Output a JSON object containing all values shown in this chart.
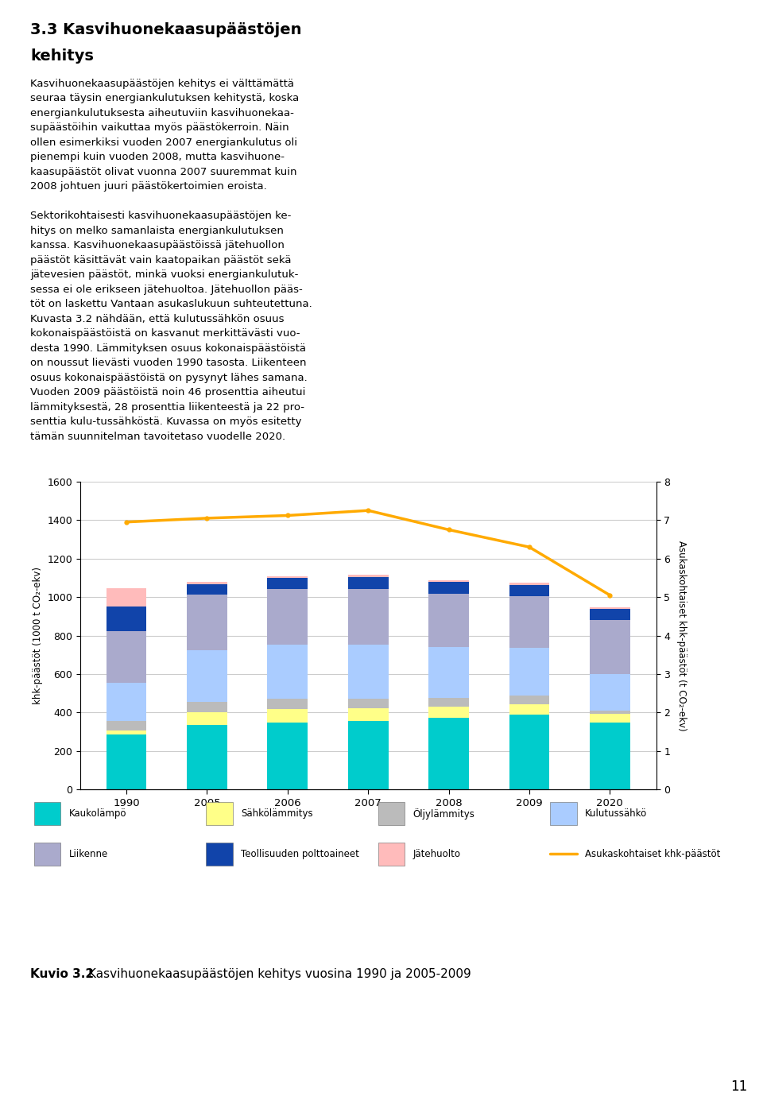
{
  "years": [
    "1990",
    "2005",
    "2006",
    "2007",
    "2008",
    "2009",
    "2020"
  ],
  "bar_data": {
    "Kaukolämpö": [
      285,
      335,
      348,
      355,
      372,
      388,
      348
    ],
    "Sähkölämmitys": [
      20,
      65,
      72,
      68,
      58,
      55,
      45
    ],
    "Öljylämmitys": [
      50,
      55,
      52,
      50,
      48,
      45,
      18
    ],
    "Kulutussähkö": [
      200,
      270,
      280,
      280,
      263,
      248,
      190
    ],
    "Liikenne": [
      268,
      288,
      288,
      288,
      278,
      268,
      278
    ],
    "Teollisuuden polttoaineet": [
      130,
      55,
      60,
      65,
      60,
      60,
      60
    ],
    "Jätehuolto": [
      95,
      12,
      10,
      10,
      10,
      10,
      10
    ]
  },
  "line_data": [
    6.95,
    7.05,
    7.12,
    7.25,
    6.75,
    6.3,
    5.05
  ],
  "colors": {
    "Kaukolämpö": "#00CCCC",
    "Sähkölämmitys": "#FFFF88",
    "Öljylämmitys": "#BBBBBB",
    "Kulutussähkö": "#AACCFF",
    "Liikenne": "#AAAACC",
    "Teollisuuden polttoaineet": "#1144AA",
    "Jätehuolto": "#FFBBBB",
    "Asukaskohtaiset khk-päästöt": "#FFAA00"
  },
  "ylim_left": [
    0,
    1600
  ],
  "ylim_right": [
    0,
    8
  ],
  "yticks_left": [
    0,
    200,
    400,
    600,
    800,
    1000,
    1200,
    1400,
    1600
  ],
  "yticks_right": [
    0,
    1,
    2,
    3,
    4,
    5,
    6,
    7,
    8
  ],
  "ylabel_left": "khk-päästöt (1000 t CO₂-ekv)",
  "ylabel_right": "Asukaskohtaiset khk-päästöt (t CO₂-ekv)",
  "legend_order": [
    "Kaukolämpö",
    "Sähkölämmitys",
    "Öljylämmitys",
    "Kulutussähkö",
    "Liikenne",
    "Teollisuuden polttoaineet",
    "Jätehuolto",
    "Asukaskohtaiset khk-päästöt"
  ],
  "caption_bold": "Kuvio 3.2",
  "caption_text": "Kasvihuonekaasupäästöjen kehitys vuosina 1990 ja 2005-2009",
  "page_number": "11",
  "bg_color": "#ffffff"
}
